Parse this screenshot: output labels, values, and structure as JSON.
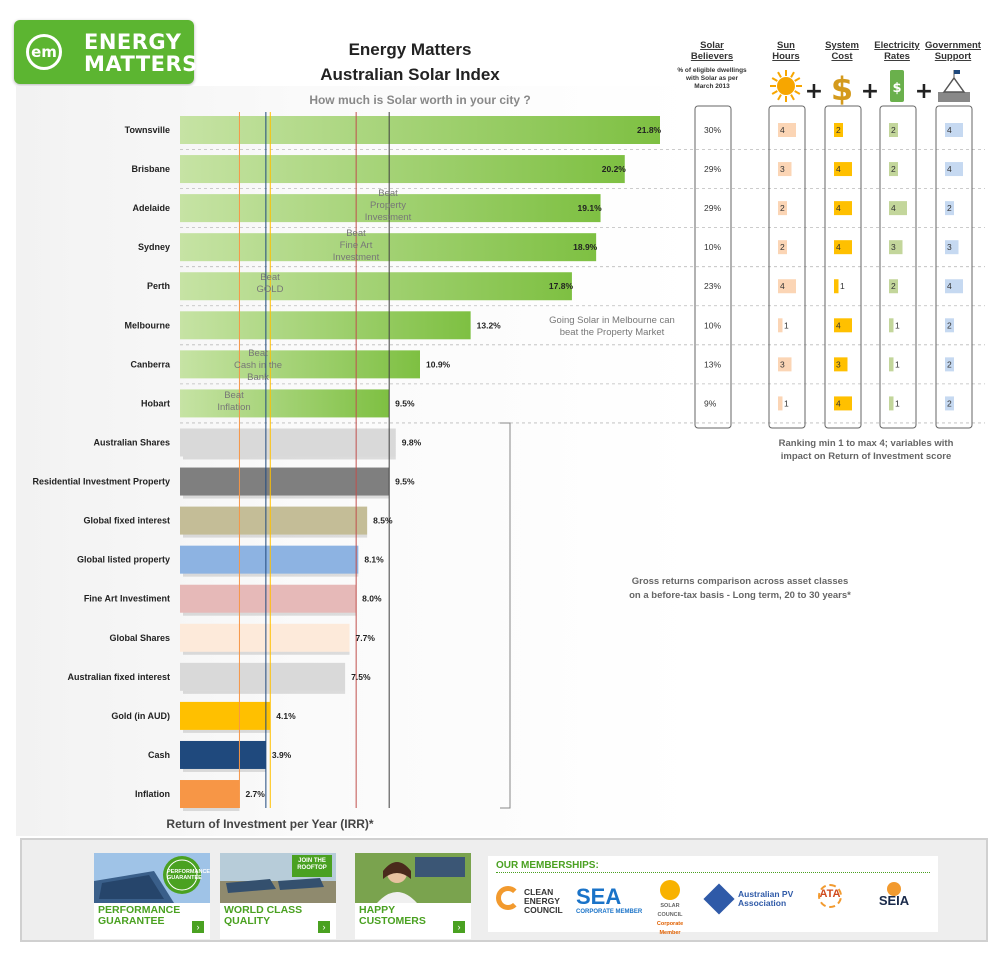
{
  "logo": {
    "text1": "ENERGY",
    "text2": "MATTERS",
    "mark": "em"
  },
  "chart_data": {
    "type": "bar",
    "orientation": "horizontal",
    "title": "Energy Matters",
    "title_line2": "Australian Solar Index",
    "subtitle": "How much is Solar worth in your city ?",
    "xlabel": "Return of Investment per Year (IRR)*",
    "categories": [
      "Townsville",
      "Brisbane",
      "Adelaide",
      "Sydney",
      "Perth",
      "Melbourne",
      "Canberra",
      "Hobart",
      "Australian Shares",
      "Residential Investment Property",
      "Global fixed interest",
      "Global listed property",
      "Fine Art Investiment",
      "Global Shares",
      "Australian fixed interest",
      "Gold (in AUD)",
      "Cash",
      "Inflation"
    ],
    "values": [
      21.8,
      20.2,
      19.1,
      18.9,
      17.8,
      13.2,
      10.9,
      9.5,
      9.8,
      9.5,
      8.5,
      8.1,
      8.0,
      7.7,
      7.5,
      4.1,
      3.9,
      2.7
    ],
    "value_labels": [
      "21.8%",
      "20.2%",
      "19.1%",
      "18.9%",
      "17.8%",
      "13.2%",
      "10.9%",
      "9.5%",
      "9.8%",
      "9.5%",
      "8.5%",
      "8.1%",
      "8.0%",
      "7.7%",
      "7.5%",
      "4.1%",
      "3.9%",
      "2.7%"
    ],
    "colors": [
      "#7ec042",
      "#7ec042",
      "#7ec042",
      "#7ec042",
      "#7ec042",
      "#7ec042",
      "#7ec042",
      "#7ec042",
      "#d9d9d9",
      "#7f7f7f",
      "#c4bd97",
      "#8db3e2",
      "#e6b9b8",
      "#fdeada",
      "#d9d9d9",
      "#ffc000",
      "#1f497d",
      "#f79646"
    ],
    "xlim": [
      0,
      22
    ],
    "reference_lines": [
      {
        "value": 2.7,
        "color": "#f79646",
        "text": [
          "Beat",
          "Inflation"
        ]
      },
      {
        "value": 3.9,
        "color": "#1f497d",
        "text": [
          "Beat",
          "Cash in the",
          "Bank"
        ]
      },
      {
        "value": 4.1,
        "color": "#ffc000",
        "text": [
          "Beat",
          "GOLD"
        ]
      },
      {
        "value": 8.0,
        "color": "#c0504d",
        "text": [
          "Beat",
          "Fine Art",
          "Investment"
        ]
      },
      {
        "value": 9.5,
        "color": "#404040",
        "text": [
          "Beat",
          "Property",
          "Investment"
        ]
      }
    ],
    "annotations": [
      "Going Solar in Melbourne can",
      "beat the Property Market"
    ],
    "gross_note": [
      "Gross returns comparison across asset classes",
      "on a before-tax basis - Long term, 20 to 30 years*"
    ],
    "ranking_note": [
      "Ranking min 1 to max 4; variables with",
      "impact on Return of Investment score"
    ]
  },
  "table": {
    "believers_header": [
      "Solar",
      "Believers"
    ],
    "believers_sub": [
      "% of eligible dwellings",
      "with Solar as per",
      "March 2013"
    ],
    "believers": [
      "30%",
      "29%",
      "29%",
      "10%",
      "23%",
      "10%",
      "13%",
      "9%"
    ],
    "factors": [
      {
        "header": [
          "Sun",
          "Hours"
        ],
        "icon": "sun-icon",
        "color": "#fbd5b5",
        "values": [
          4,
          3,
          2,
          2,
          4,
          1,
          3,
          1
        ]
      },
      {
        "header": [
          "System",
          "Cost"
        ],
        "icon": "dollar-icon",
        "color": "#ffc000",
        "values": [
          2,
          4,
          4,
          4,
          1,
          4,
          3,
          4
        ]
      },
      {
        "header": [
          "Electricity",
          "Rates"
        ],
        "icon": "money-icon",
        "color": "#c3d69b",
        "values": [
          2,
          2,
          4,
          3,
          2,
          1,
          1,
          1
        ]
      },
      {
        "header": [
          "Government",
          "Support"
        ],
        "icon": "parliament-icon",
        "color": "#c6d9f1",
        "values": [
          4,
          4,
          2,
          3,
          4,
          2,
          2,
          2
        ]
      }
    ]
  },
  "footer": {
    "promos": [
      {
        "line1": "PERFORMANCE",
        "line2": "GUARANTEE",
        "badge": "PERFORMANCE GUARANTEE",
        "icon": "solar-panels-icon"
      },
      {
        "line1": "WORLD CLASS",
        "line2": "QUALITY",
        "badge": "JOIN THE ROOFTOP",
        "icon": "solar-field-icon"
      },
      {
        "line1": "HAPPY",
        "line2": "CUSTOMERS",
        "badge": "",
        "icon": "customer-photo-icon"
      }
    ],
    "memberships_title": "OUR MEMBERSHIPS:",
    "members": [
      "CLEAN ENERGY COUNCIL",
      "SEA",
      "SOLAR COUNCIL",
      "Australian PV Association",
      "ATA",
      "SEIA"
    ],
    "member_subs": [
      "",
      "CORPORATE MEMBER",
      "Corporate Member",
      "",
      "",
      ""
    ],
    "arrow": "›"
  }
}
